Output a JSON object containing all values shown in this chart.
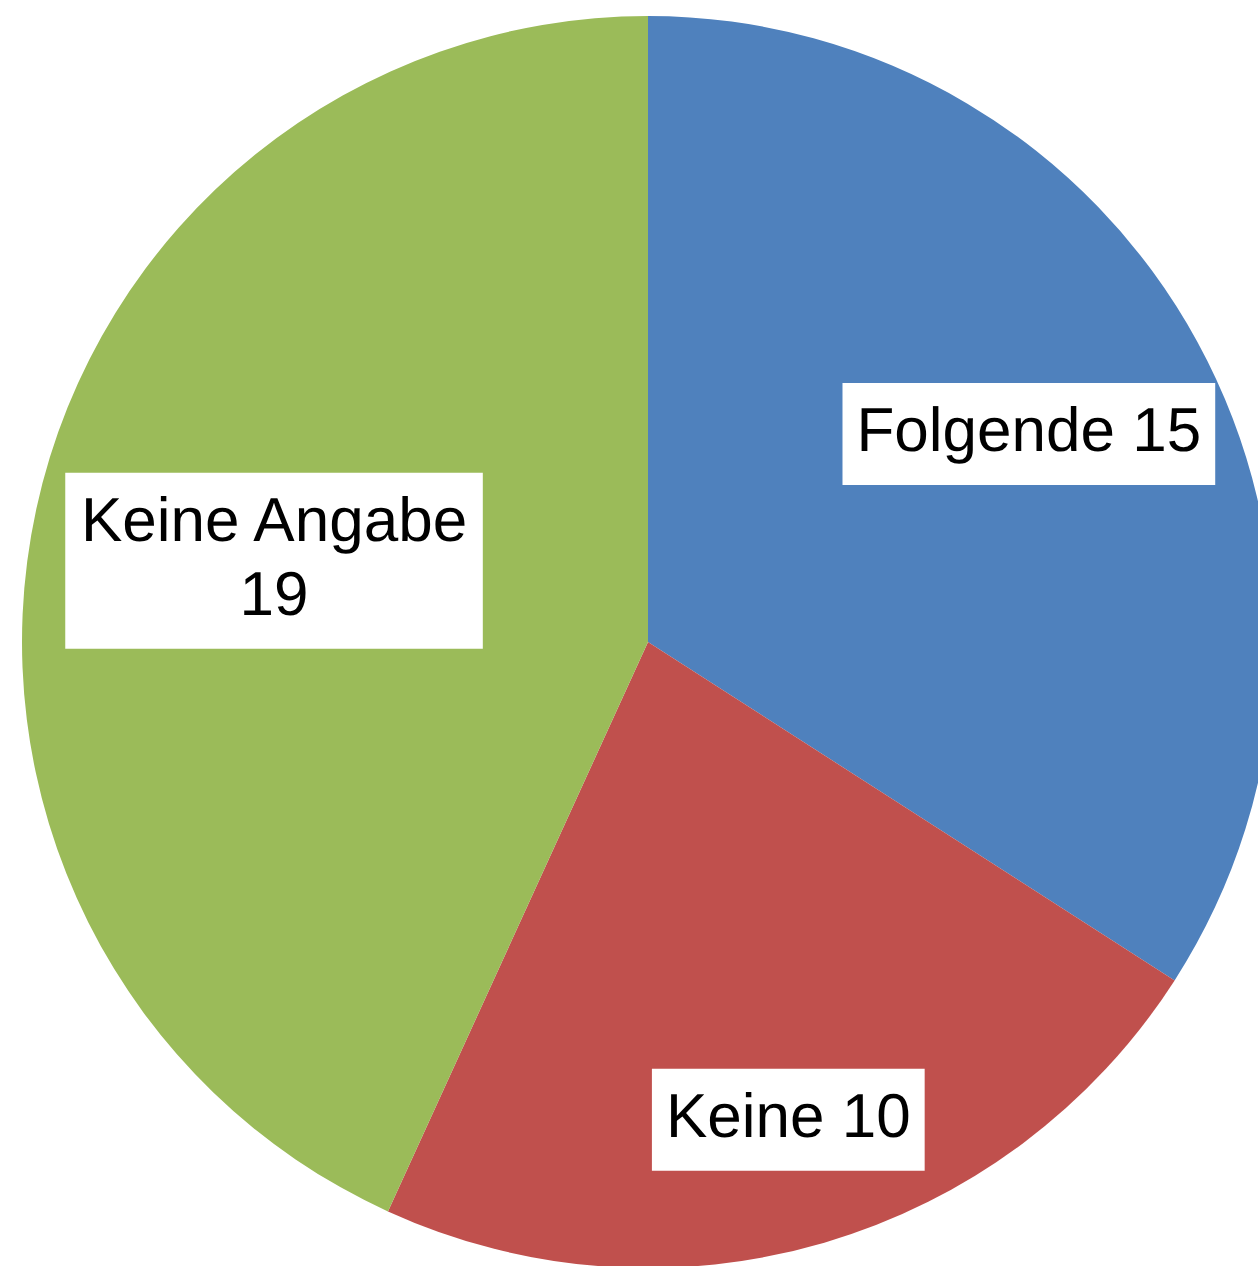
{
  "chart_data": {
    "type": "pie",
    "categories": [
      "Folgende",
      "Keine",
      "Keine Angabe"
    ],
    "values": [
      15,
      10,
      19
    ],
    "colors": [
      "#4f81bd",
      "#c0504d",
      "#9bbb59"
    ],
    "data_labels": true
  }
}
